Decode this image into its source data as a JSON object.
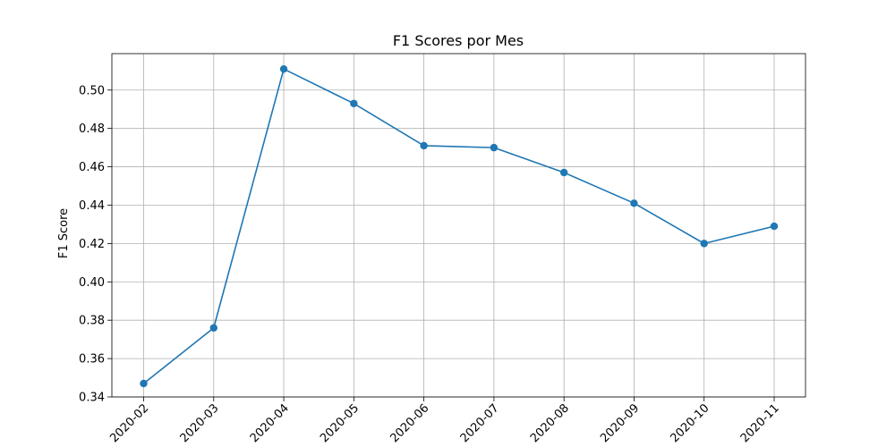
{
  "chart_data": {
    "type": "line",
    "title": "F1 Scores por Mes",
    "xlabel": "",
    "ylabel": "F1 Score",
    "categories": [
      "2020-02",
      "2020-03",
      "2020-04",
      "2020-05",
      "2020-06",
      "2020-07",
      "2020-08",
      "2020-09",
      "2020-10",
      "2020-11"
    ],
    "series": [
      {
        "values": [
          0.347,
          0.376,
          0.511,
          0.493,
          0.471,
          0.47,
          0.457,
          0.441,
          0.42,
          0.429
        ],
        "color": "#1f77b4",
        "marker": "circle"
      }
    ],
    "ylim": [
      0.34,
      0.519
    ],
    "yticks": [
      0.34,
      0.36,
      0.38,
      0.4,
      0.42,
      0.44,
      0.46,
      0.48,
      0.5
    ],
    "ytick_labels": [
      "0.34",
      "0.36",
      "0.38",
      "0.40",
      "0.42",
      "0.44",
      "0.46",
      "0.48",
      "0.50"
    ],
    "grid": true,
    "legend": "none",
    "grid_color": "#b0b0b0"
  }
}
